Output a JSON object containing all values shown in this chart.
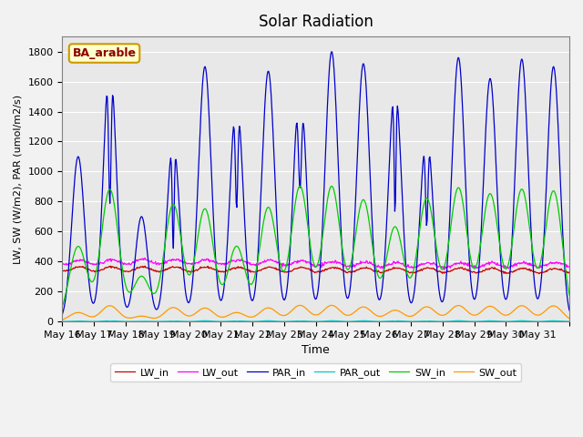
{
  "title": "Solar Radiation",
  "xlabel": "Time",
  "ylabel": "LW, SW (W/m2), PAR (umol/m2/s)",
  "annotation": "BA_arable",
  "ylim": [
    0,
    1900
  ],
  "yticks": [
    0,
    200,
    400,
    600,
    800,
    1000,
    1200,
    1400,
    1600,
    1800
  ],
  "legend": [
    {
      "label": "LW_in",
      "color": "#cc0000"
    },
    {
      "label": "LW_out",
      "color": "#ff00ff"
    },
    {
      "label": "PAR_in",
      "color": "#0000cc"
    },
    {
      "label": "PAR_out",
      "color": "#00cccc"
    },
    {
      "label": "SW_in",
      "color": "#00cc00"
    },
    {
      "label": "SW_out",
      "color": "#ff9900"
    }
  ],
  "xticklabels": [
    "May 16",
    "May 17",
    "May 18",
    "May 19",
    "May 20",
    "May 21",
    "May 22",
    "May 23",
    "May 24",
    "May 25",
    "May 26",
    "May 27",
    "May 28",
    "May 29",
    "May 30",
    "May 31",
    ""
  ],
  "n_days": 16,
  "pts_per_day": 48,
  "background_color": "#e8e8e8",
  "grid_color": "#ffffff"
}
